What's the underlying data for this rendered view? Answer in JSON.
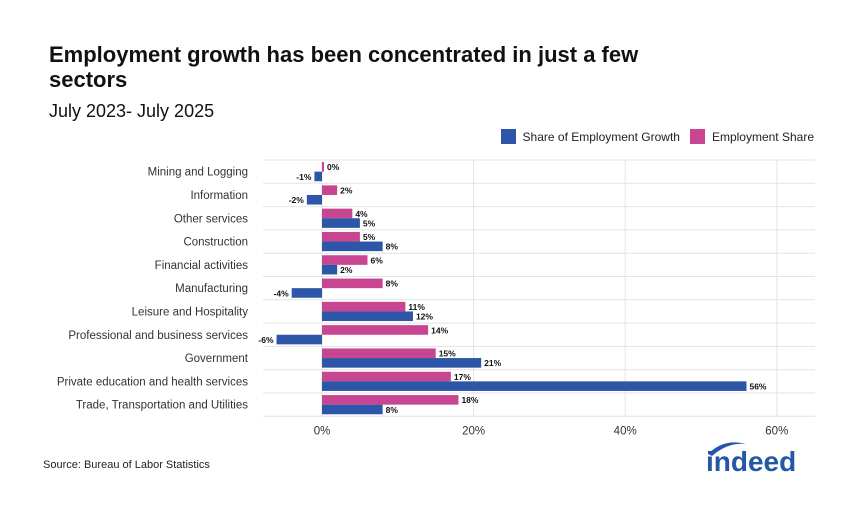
{
  "header": {
    "title": "Employment growth has been concentrated in just a few sectors",
    "subtitle": "July 2023- July 2025"
  },
  "footer": {
    "source": "Source: Bureau of Labor Statistics",
    "logo_text": "indeed"
  },
  "colors": {
    "growth": "#2d55a8",
    "share": "#c84592",
    "logo": "#2557a7"
  },
  "chart_data": {
    "type": "bar",
    "orientation": "horizontal",
    "categories": [
      "Mining and Logging",
      "Information",
      "Other services",
      "Construction",
      "Financial activities",
      "Manufacturing",
      "Leisure and Hospitality",
      "Professional and business services",
      "Government",
      "Private education and health services",
      "Trade, Transportation and Utilities"
    ],
    "series": [
      {
        "name": "Employment Share",
        "values": [
          0,
          2,
          4,
          5,
          6,
          8,
          11,
          14,
          15,
          17,
          18
        ],
        "labels": [
          "0%",
          "2%",
          "4%",
          "5%",
          "6%",
          "8%",
          "11%",
          "14%",
          "15%",
          "17%",
          "18%"
        ]
      },
      {
        "name": "Share of Employment Growth",
        "values": [
          -1,
          -2,
          5,
          8,
          2,
          -4,
          12,
          -6,
          21,
          56,
          8
        ],
        "labels": [
          "-1%",
          "-2%",
          "5%",
          "8%",
          "2%",
          "-4%",
          "12%",
          "-6%",
          "21%",
          "56%",
          "8%"
        ]
      }
    ],
    "legend": [
      "Share of Employment Growth",
      "Employment Share"
    ],
    "legend_position": "top-right",
    "xlim": [
      -9,
      65
    ],
    "xticks": [
      0,
      20,
      40,
      60
    ],
    "xtick_labels": [
      "0%",
      "20%",
      "40%",
      "60%"
    ],
    "grid": true,
    "xlabel": "",
    "ylabel": ""
  }
}
